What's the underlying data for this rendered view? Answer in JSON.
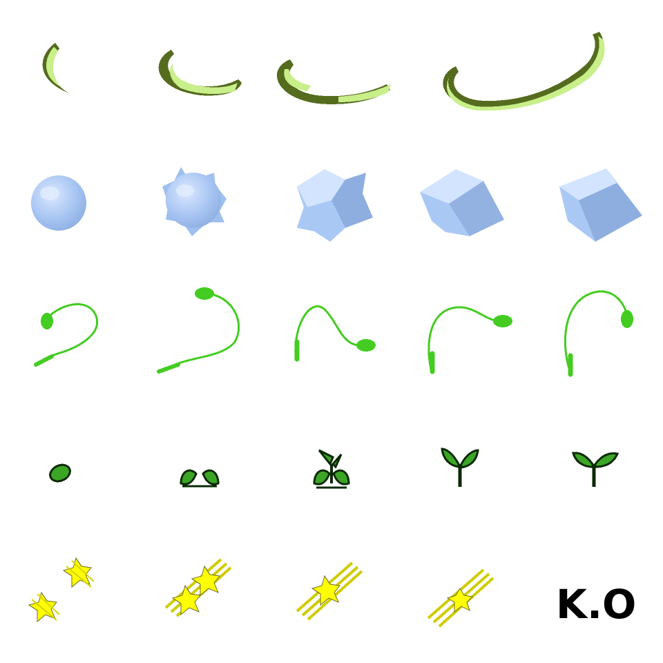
{
  "sheet": {
    "rows": [
      {
        "name": "vine-whip",
        "frames": 4
      },
      {
        "name": "ice-cube",
        "frames": 5
      },
      {
        "name": "vine-tendril",
        "frames": 5
      },
      {
        "name": "seed-sprout",
        "frames": 5
      },
      {
        "name": "sparkle-beam",
        "frames": 4
      }
    ],
    "label": "K.O"
  },
  "colors": {
    "vine_dark": "#556b1e",
    "vine_light": "#c8ef8a",
    "ice_light": "#d2e4ff",
    "ice_mid": "#aac8f4",
    "ice_dark": "#8eaee0",
    "tendril": "#44cc22",
    "sprout": "#3da526",
    "sprout_outline": "#0b2a05",
    "sparkle": "#ffff00",
    "sparkle_outline": "#6d6b2a",
    "text": "#000000"
  }
}
